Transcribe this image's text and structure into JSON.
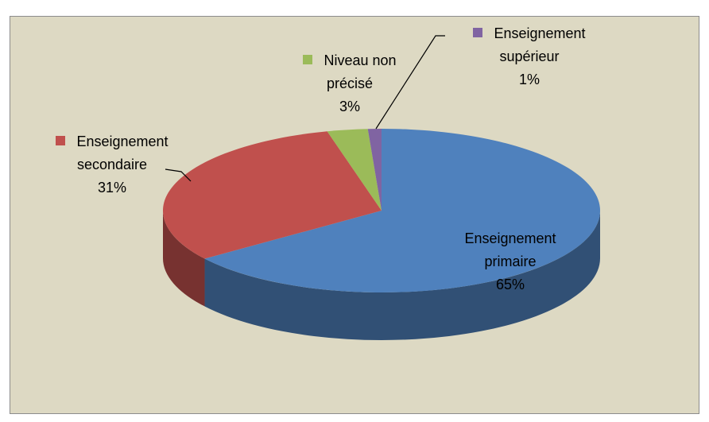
{
  "chart_data": {
    "type": "pie",
    "categories": [
      "Enseignement primaire",
      "Enseignement secondaire",
      "Niveau non précisé",
      "Enseignement supérieur"
    ],
    "values": [
      65,
      31,
      3,
      1
    ],
    "value_labels": [
      "65%",
      "31%",
      "3%",
      "1%"
    ],
    "colors": [
      "#4f81bd",
      "#c0504d",
      "#9bbb59",
      "#8064a2"
    ]
  }
}
